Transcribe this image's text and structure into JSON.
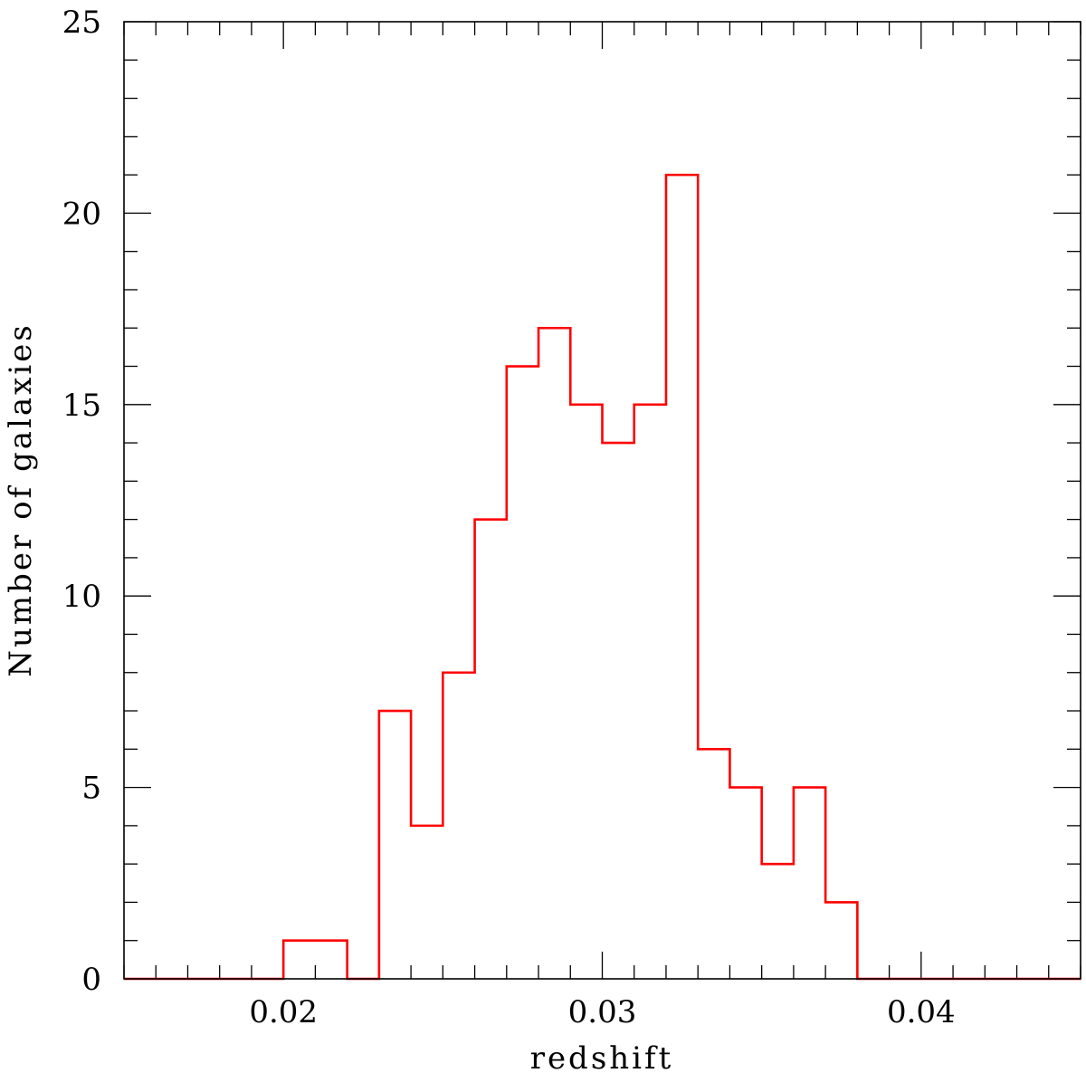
{
  "chart_data": {
    "type": "bar",
    "style": "step-histogram",
    "xlabel": "redshift",
    "ylabel": "Number of galaxies",
    "xlim": [
      0.015,
      0.045
    ],
    "ylim": [
      0,
      25
    ],
    "x_ticks": [
      {
        "value": 0.02,
        "label": "0.02"
      },
      {
        "value": 0.03,
        "label": "0.03"
      },
      {
        "value": 0.04,
        "label": "0.04"
      }
    ],
    "y_ticks": [
      {
        "value": 0,
        "label": "0"
      },
      {
        "value": 5,
        "label": "5"
      },
      {
        "value": 10,
        "label": "10"
      },
      {
        "value": 15,
        "label": "15"
      },
      {
        "value": 20,
        "label": "20"
      },
      {
        "value": 25,
        "label": "25"
      }
    ],
    "x_minor_step": 0.001,
    "y_minor_step": 1,
    "bin_width": 0.001,
    "bin_edges": [
      0.015,
      0.016,
      0.017,
      0.018,
      0.019,
      0.02,
      0.021,
      0.022,
      0.023,
      0.024,
      0.025,
      0.026,
      0.027,
      0.028,
      0.029,
      0.03,
      0.031,
      0.032,
      0.033,
      0.034,
      0.035,
      0.036,
      0.037,
      0.038,
      0.039,
      0.04,
      0.041,
      0.042,
      0.043,
      0.044,
      0.045
    ],
    "values": [
      0,
      0,
      0,
      0,
      0,
      1,
      1,
      0,
      7,
      4,
      8,
      12,
      16,
      17,
      15,
      14,
      15,
      21,
      6,
      5,
      3,
      5,
      2,
      0,
      0,
      0,
      0,
      0,
      0,
      0
    ],
    "color": "#ff0000",
    "grid": false,
    "legend": "none"
  }
}
